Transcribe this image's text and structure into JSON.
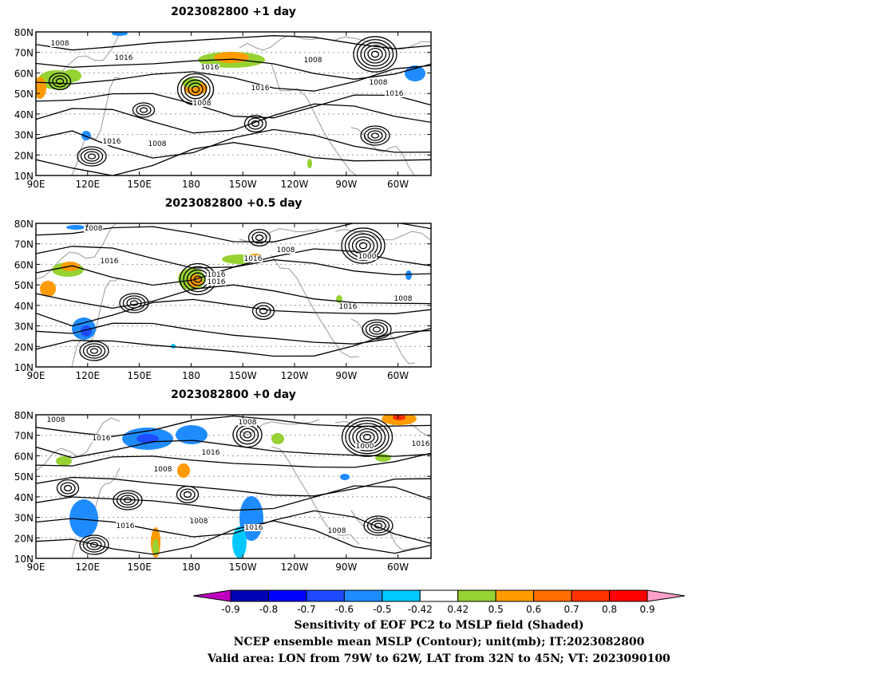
{
  "panels": [
    {
      "title": "2023082800  +1 day"
    },
    {
      "title": "2023082800  +0.5 day"
    },
    {
      "title": "2023082800  +0 day"
    }
  ],
  "axes": {
    "lon_ticks": [
      "90E",
      "120E",
      "150E",
      "180",
      "150W",
      "120W",
      "90W",
      "60W"
    ],
    "lat_ticks": [
      "80N",
      "70N",
      "60N",
      "50N",
      "40N",
      "30N",
      "20N",
      "10N"
    ]
  },
  "contour_labels": [
    [
      "1008",
      "1016",
      "1016",
      "1008",
      "1016",
      "1008",
      "1008",
      "1016",
      "1016",
      "1008"
    ],
    [
      "1008",
      "1016",
      "1008",
      "1016",
      "1016",
      "1000",
      "1016",
      "1016",
      "1008"
    ],
    [
      "1008",
      "1016",
      "1008",
      "1016",
      "1008",
      "1000",
      "1016",
      "1008",
      "1016",
      "1016",
      "1008"
    ]
  ],
  "colorbar": {
    "labels": [
      "-0.9",
      "-0.8",
      "-0.7",
      "-0.6",
      "-0.5",
      "-0.42",
      "0.42",
      "0.5",
      "0.6",
      "0.7",
      "0.8",
      "0.9"
    ],
    "colors": [
      "#c000c0",
      "#0000b4",
      "#0000ff",
      "#1e4bff",
      "#1e8cff",
      "#00c8ff",
      "#ffffff",
      "#96d232",
      "#ff9b00",
      "#ff6e00",
      "#ff3200",
      "#ff0000",
      "#ffa0c8"
    ]
  },
  "caption": {
    "line1": "Sensitivity of EOF PC2 to MSLP field (Shaded)",
    "line2": "NCEP ensemble mean MSLP (Contour); unit(mb); IT:2023082800",
    "line3": "Valid area: LON from 79W to 62W, LAT from 32N to 45N; VT: 2023090100"
  }
}
